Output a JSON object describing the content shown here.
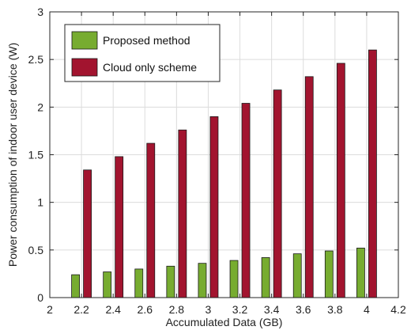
{
  "chart_data": {
    "type": "bar",
    "title": "",
    "xlabel": "Accumulated Data (GB)",
    "ylabel": "Power consumption of indoor user device (W)",
    "xlim": [
      2,
      4.2
    ],
    "ylim": [
      0,
      3
    ],
    "x_ticks": [
      "2",
      "2.2",
      "2.4",
      "2.6",
      "2.8",
      "3",
      "3.2",
      "3.4",
      "3.6",
      "3.8",
      "4",
      "4.2"
    ],
    "y_ticks": [
      "0",
      "0.5",
      "1",
      "1.5",
      "2",
      "2.5",
      "3"
    ],
    "x": [
      2.2,
      2.4,
      2.6,
      2.8,
      3.0,
      3.2,
      3.4,
      3.6,
      3.8,
      4.0
    ],
    "series": [
      {
        "name": "Proposed method",
        "color": "#77ac30",
        "values": [
          0.24,
          0.27,
          0.3,
          0.33,
          0.36,
          0.39,
          0.42,
          0.46,
          0.49,
          0.52
        ]
      },
      {
        "name": "Cloud only scheme",
        "color": "#a2142f",
        "values": [
          1.34,
          1.48,
          1.62,
          1.76,
          1.9,
          2.04,
          2.18,
          2.32,
          2.46,
          2.6
        ]
      }
    ],
    "grid": true,
    "legend_position": "top-left"
  }
}
